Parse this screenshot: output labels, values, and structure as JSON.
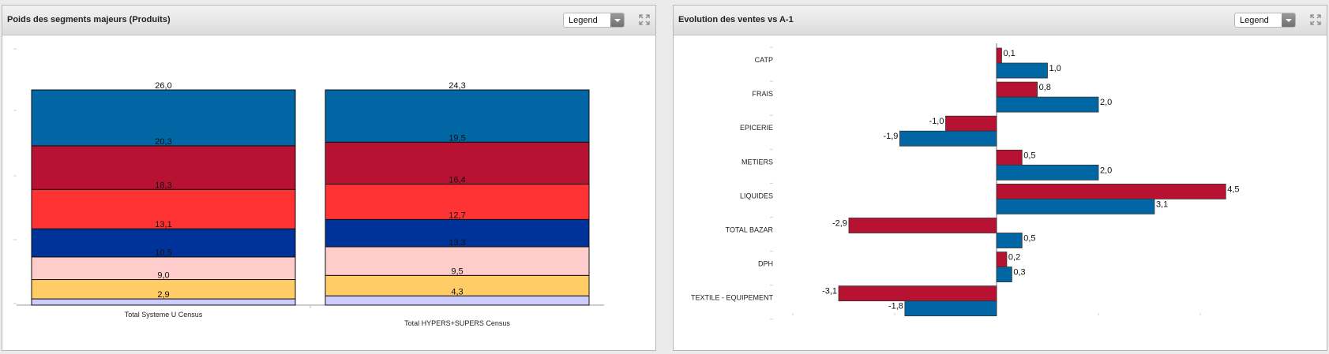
{
  "panels": [
    {
      "title": "Poids des segments majeurs (Produits)",
      "legend_label": "Legend",
      "icons": {
        "expand": "expand-icon",
        "dropdown": "chevron-down-icon"
      }
    },
    {
      "title": "Evolution des ventes vs A-1",
      "legend_label": "Legend",
      "icons": {
        "expand": "expand-icon",
        "dropdown": "chevron-down-icon"
      }
    }
  ],
  "chart_data": [
    {
      "type": "bar",
      "stacked": true,
      "percent": true,
      "categories": [
        "Total Systeme U Census",
        "Total HYPERS+SUPERS Census"
      ],
      "series": [
        {
          "color": "#0066a4",
          "values": [
            26.0,
            24.3
          ],
          "labels": [
            "26,0",
            "24,3"
          ]
        },
        {
          "color": "#b81233",
          "values": [
            20.3,
            19.5
          ],
          "labels": [
            "20,3",
            "19,5"
          ]
        },
        {
          "color": "#ff3333",
          "values": [
            18.3,
            16.4
          ],
          "labels": [
            "18,3",
            "16,4"
          ]
        },
        {
          "color": "#003399",
          "values": [
            13.1,
            12.7
          ],
          "labels": [
            "13,1",
            "12,7"
          ]
        },
        {
          "color": "#ffcccc",
          "values": [
            10.5,
            13.3
          ],
          "labels": [
            "10,5",
            "13,3"
          ]
        },
        {
          "color": "#ffcc66",
          "values": [
            9.0,
            9.5
          ],
          "labels": [
            "9,0",
            "9,5"
          ]
        },
        {
          "color": "#ccccff",
          "values": [
            2.9,
            4.3
          ],
          "labels": [
            "2,9",
            "4,3"
          ]
        }
      ],
      "ylim": [
        0,
        100
      ],
      "legend": "hidden"
    },
    {
      "type": "bar",
      "orientation": "horizontal",
      "categories": [
        "CATP",
        "FRAIS",
        "EPICERIE",
        "METIERS",
        "LIQUIDES",
        "TOTAL BAZAR",
        "DPH",
        "TEXTILE - EQUIPEMENT"
      ],
      "series": [
        {
          "color": "#b81233",
          "values": [
            0.1,
            0.8,
            -1.0,
            0.5,
            4.5,
            -2.9,
            0.2,
            -3.1
          ],
          "labels": [
            "0,1",
            "0,8",
            "-1,0",
            "0,5",
            "4,5",
            "-2,9",
            "0,2",
            "-3,1"
          ]
        },
        {
          "color": "#0066a4",
          "values": [
            1.0,
            2.0,
            -1.9,
            2.0,
            3.1,
            0.5,
            0.3,
            -1.8
          ],
          "labels": [
            "1,0",
            "2,0",
            "-1,9",
            "2,0",
            "3,1",
            "0,5",
            "0,3",
            "-1,8"
          ]
        }
      ],
      "xlim": [
        -4,
        6
      ],
      "legend": "hidden"
    }
  ]
}
